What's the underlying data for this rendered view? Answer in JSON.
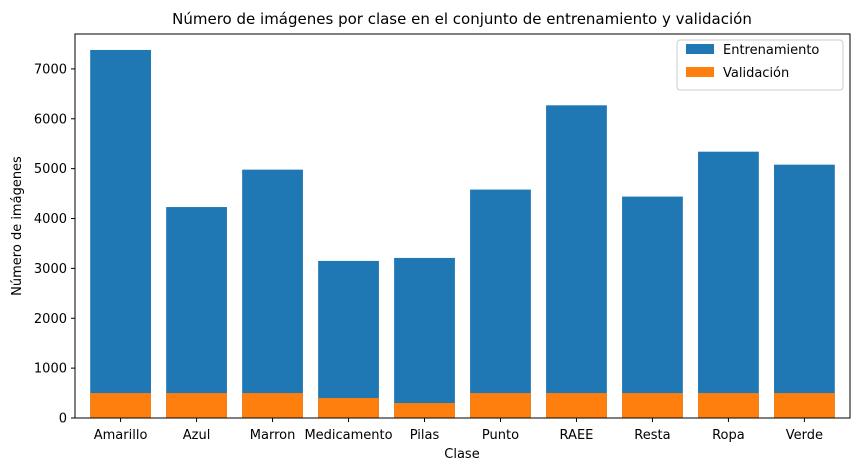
{
  "chart_data": {
    "type": "bar",
    "stacking": "overlay",
    "title": "Número de imágenes por clase en el conjunto de entrenamiento y validación",
    "xlabel": "Clase",
    "ylabel": "Número de imágenes",
    "ylim": [
      0,
      7700
    ],
    "yticks": [
      0,
      1000,
      2000,
      3000,
      4000,
      5000,
      6000,
      7000
    ],
    "grid": false,
    "legend_position": "top-right",
    "categories": [
      "Amarillo",
      "Azul",
      "Marron",
      "Medicamento",
      "Pilas",
      "Punto",
      "RAEE",
      "Resta",
      "Ropa",
      "Verde"
    ],
    "series": [
      {
        "name": "Entrenamiento",
        "color": "#1f77b4",
        "values": [
          7380,
          4230,
          4980,
          3150,
          3210,
          4580,
          6270,
          4440,
          5340,
          5080
        ]
      },
      {
        "name": "Validación",
        "color": "#ff7f0e",
        "values": [
          500,
          500,
          500,
          400,
          300,
          500,
          500,
          500,
          500,
          500
        ]
      }
    ]
  }
}
